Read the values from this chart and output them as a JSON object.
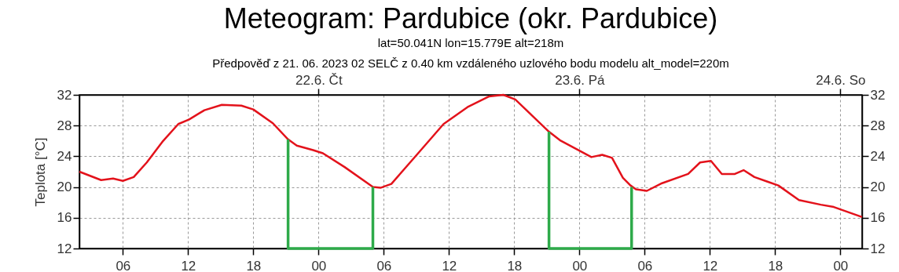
{
  "chart_data": {
    "type": "line",
    "title": "Meteogram: Pardubice (okr. Pardubice)",
    "subtitle": "lat=50.041N lon=15.779E alt=218m\nPředpověď z 21. 06. 2023 02 SELČ z 0.40 km vzdáleného uzlového bodu modelu alt_model=220m",
    "ylabel": "Teplota [°C]",
    "xlim": [
      2,
      74
    ],
    "xticks": [
      {
        "value": 6,
        "label": "06"
      },
      {
        "value": 12,
        "label": "12"
      },
      {
        "value": 18,
        "label": "18"
      },
      {
        "value": 24,
        "label": "00"
      },
      {
        "value": 30,
        "label": "06"
      },
      {
        "value": 36,
        "label": "12"
      },
      {
        "value": 42,
        "label": "18"
      },
      {
        "value": 48,
        "label": "00"
      },
      {
        "value": 54,
        "label": "06"
      },
      {
        "value": 60,
        "label": "12"
      },
      {
        "value": 66,
        "label": "18"
      },
      {
        "value": 72,
        "label": "00"
      }
    ],
    "x2lim": [
      "2023-06-21T02:00",
      "2023-06-24T02:00"
    ],
    "x2ticks": [
      {
        "value": "2023-06-22",
        "label": "22.6. Čt"
      },
      {
        "value": "2023-06-23",
        "label": "23.6. Pá"
      },
      {
        "value": "2023-06-24",
        "label": "24.6. So"
      }
    ],
    "ylim": [
      12,
      32
    ],
    "yticks": [
      12,
      16,
      20,
      24,
      28,
      32
    ],
    "y2lim": [
      12,
      32
    ],
    "y2ticks": [
      12,
      16,
      20,
      24,
      28,
      32
    ],
    "grid": true,
    "line_style": "solid",
    "series": [
      {
        "color": "#e3121b",
        "x": [
          2,
          4,
          5.1,
          6,
          7,
          8.2,
          9.7,
          11.1,
          12.1,
          13.5,
          15.1,
          16.9,
          18,
          19.8,
          21.2,
          22,
          23.5,
          24.4,
          26.4,
          29,
          29.7,
          30.7,
          33.1,
          35.5,
          37.7,
          39.7,
          41,
          42.1,
          45.2,
          46.2,
          49.1,
          50.1,
          51,
          52,
          52.7,
          53.2,
          54.2,
          55.6,
          58,
          59.1,
          60.1,
          61.1,
          62.3,
          63.1,
          64.1,
          65.3,
          66.3,
          68.2,
          70.2,
          71.4,
          74
        ],
        "values": [
          22,
          20.9,
          21.1,
          20.8,
          21.3,
          23.2,
          26,
          28.2,
          28.8,
          30,
          30.7,
          30.6,
          30.1,
          28.3,
          26.2,
          25.4,
          24.8,
          24.4,
          22.6,
          20,
          19.9,
          20.4,
          24.3,
          28.2,
          30.4,
          31.8,
          32,
          31.4,
          27.2,
          26.1,
          23.9,
          24.2,
          23.8,
          21.2,
          20.2,
          19.7,
          19.5,
          20.5,
          21.7,
          23.2,
          23.4,
          21.7,
          21.7,
          22.2,
          21.3,
          20.7,
          20.2,
          18.3,
          17.7,
          17.4,
          16.1
        ]
      },
      {
        "color": "#2eaa4a",
        "x": [
          21.2,
          21.2,
          29,
          29
        ],
        "values": [
          26.2,
          12,
          12,
          20
        ]
      },
      {
        "color": "#2eaa4a",
        "x": [
          45.2,
          45.2,
          52.8,
          52.8
        ],
        "values": [
          27.2,
          12,
          12,
          20
        ]
      }
    ]
  }
}
